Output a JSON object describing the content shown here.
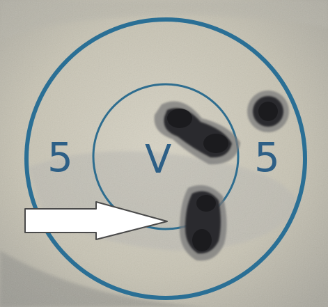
{
  "target": {
    "left_number": "5",
    "right_number": "5",
    "center_letter": "V",
    "ring_color": "#2a6f95",
    "inner_ring_color": "#2e6d8f",
    "text_color": "#2d5f86",
    "paper_color": "#cfcab9",
    "hole_color": "#1f1f22",
    "hole_edge_color": "#6e6e6e",
    "arrow_color": "#ffffff"
  }
}
